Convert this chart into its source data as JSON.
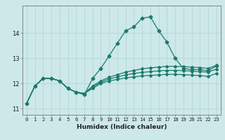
{
  "xlabel": "Humidex (Indice chaleur)",
  "x": [
    0,
    1,
    2,
    3,
    4,
    5,
    6,
    7,
    8,
    9,
    10,
    11,
    12,
    13,
    14,
    15,
    16,
    17,
    18,
    19,
    20,
    21,
    22,
    23
  ],
  "line1": [
    11.2,
    11.9,
    12.2,
    12.2,
    12.1,
    11.8,
    11.65,
    11.55,
    12.2,
    12.6,
    13.1,
    13.6,
    14.1,
    14.25,
    14.6,
    14.65,
    14.1,
    13.65,
    13.0,
    12.6,
    12.55,
    12.55,
    12.5,
    12.7
  ],
  "line2": [
    11.2,
    11.9,
    12.2,
    12.2,
    12.1,
    11.8,
    11.65,
    11.6,
    11.9,
    12.1,
    12.25,
    12.35,
    12.45,
    12.52,
    12.58,
    12.62,
    12.65,
    12.68,
    12.68,
    12.67,
    12.65,
    12.63,
    12.6,
    12.72
  ],
  "line3": [
    11.2,
    11.9,
    12.2,
    12.2,
    12.1,
    11.8,
    11.65,
    11.6,
    11.85,
    12.05,
    12.18,
    12.26,
    12.34,
    12.4,
    12.44,
    12.47,
    12.5,
    12.52,
    12.52,
    12.51,
    12.49,
    12.47,
    12.45,
    12.57
  ],
  "line4": [
    11.2,
    11.9,
    12.2,
    12.2,
    12.1,
    11.8,
    11.65,
    11.6,
    11.8,
    12.0,
    12.1,
    12.16,
    12.22,
    12.26,
    12.3,
    12.32,
    12.34,
    12.36,
    12.36,
    12.35,
    12.33,
    12.31,
    12.28,
    12.4
  ],
  "bg_color": "#cde8e8",
  "grid_color": "#b8d8d8",
  "line_color": "#1a7a6e",
  "ylim": [
    10.75,
    15.1
  ],
  "yticks": [
    11,
    12,
    13,
    14
  ],
  "xlim": [
    -0.5,
    23.5
  ]
}
